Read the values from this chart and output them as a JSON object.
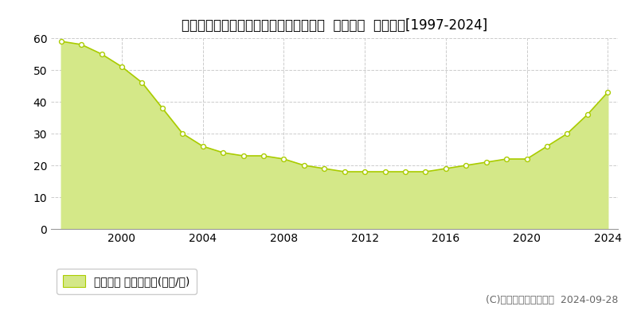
{
  "title": "福岡県福岡市東区多の津２丁目７番２２  基準地価  地価推移[1997-2024]",
  "years": [
    1997,
    1998,
    1999,
    2000,
    2001,
    2002,
    2003,
    2004,
    2005,
    2006,
    2007,
    2008,
    2009,
    2010,
    2011,
    2012,
    2013,
    2014,
    2015,
    2016,
    2017,
    2018,
    2019,
    2020,
    2021,
    2022,
    2023,
    2024
  ],
  "values": [
    59,
    58,
    55,
    51,
    46,
    38,
    30,
    26,
    24,
    23,
    23,
    22,
    20,
    19,
    18,
    18,
    18,
    18,
    18,
    19,
    20,
    21,
    22,
    22,
    26,
    30,
    36,
    43
  ],
  "line_color": "#aacc00",
  "fill_color": "#d4e888",
  "marker_color": "#ffffff",
  "marker_edge_color": "#aacc00",
  "background_color": "#ffffff",
  "grid_color": "#cccccc",
  "xlim": [
    1996.5,
    2024.5
  ],
  "ylim": [
    0,
    60
  ],
  "yticks": [
    0,
    10,
    20,
    30,
    40,
    50,
    60
  ],
  "xticks": [
    2000,
    2004,
    2008,
    2012,
    2016,
    2020,
    2024
  ],
  "legend_label": "基準地価 平均坪単価(万円/坪)",
  "copyright": "(C)土地価格ドットコム  2024-09-28",
  "title_fontsize": 12,
  "tick_fontsize": 10,
  "legend_fontsize": 10,
  "copyright_fontsize": 9
}
